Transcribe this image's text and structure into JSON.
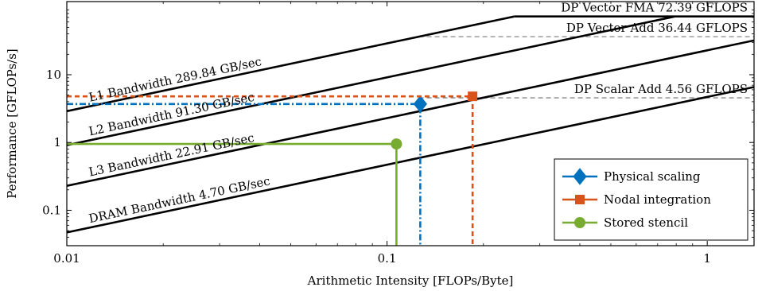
{
  "chart_data": {
    "type": "line",
    "subtype": "roofline",
    "xlabel": "Arithmetic Intensity [FLOPs/Byte]",
    "ylabel": "Performance [GFLOPs/s]",
    "xscale": "log",
    "yscale": "log",
    "xlim": [
      0.01,
      1.4
    ],
    "ylim": [
      0.03,
      120
    ],
    "grid": false,
    "legend_position": "bottom-right",
    "x_ticks": [
      {
        "value": 0.01,
        "label": "0.01"
      },
      {
        "value": 0.1,
        "label": "0.1"
      },
      {
        "value": 1,
        "label": "1"
      }
    ],
    "y_ticks": [
      {
        "value": 0.1,
        "label": "0.1"
      },
      {
        "value": 1,
        "label": "1"
      },
      {
        "value": 10,
        "label": "10"
      }
    ],
    "bandwidth_roofs": [
      {
        "label": "L1 Bandwidth 289.84 GB/sec",
        "bandwidth": 289.84,
        "label_x": 0.0118
      },
      {
        "label": "L2 Bandwidth 91.30 GB/sec",
        "bandwidth": 91.3,
        "label_x": 0.0118
      },
      {
        "label": "L3 Bandwidth 22.91 GB/sec",
        "bandwidth": 22.91,
        "label_x": 0.0118
      },
      {
        "label": "DRAM Bandwidth 4.70 GB/sec",
        "bandwidth": 4.7,
        "label_x": 0.0118
      }
    ],
    "compute_roofs": [
      {
        "label": "DP Vector FMA 72.39 GFLOPS",
        "value": 72.39,
        "style": "solid",
        "x_start": 0.2498
      },
      {
        "label": "DP Vector Add 36.44 GFLOPS",
        "value": 36.44,
        "style": "dashed",
        "x_start": 0.1257
      },
      {
        "label": "DP Scalar Add 4.56 GFLOPS",
        "value": 4.56,
        "style": "dashed",
        "x_start": 0.1257
      }
    ],
    "series": [
      {
        "name": "Physical scaling",
        "color": "#0072bd",
        "marker": "diamond",
        "line_style": "dashdot",
        "x": 0.127,
        "y": 3.7
      },
      {
        "name": "Nodal integration",
        "color": "#d95319",
        "marker": "square",
        "line_style": "dashed",
        "x": 0.185,
        "y": 4.8
      },
      {
        "name": "Stored stencil",
        "color": "#77ac30",
        "marker": "circle",
        "line_style": "solid",
        "x": 0.107,
        "y": 0.95
      }
    ],
    "colors": {
      "roof_line": "#000000",
      "compute_dashed": "#888888"
    }
  }
}
